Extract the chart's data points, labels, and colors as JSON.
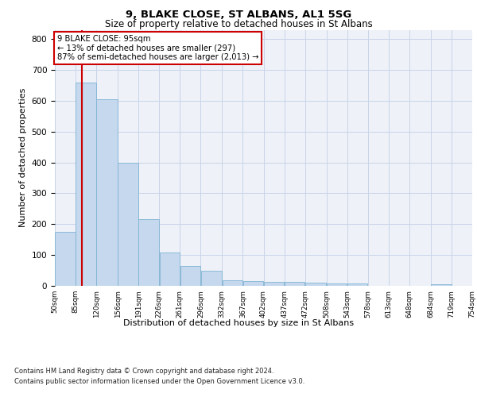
{
  "title1": "9, BLAKE CLOSE, ST ALBANS, AL1 5SG",
  "title2": "Size of property relative to detached houses in St Albans",
  "xlabel": "Distribution of detached houses by size in St Albans",
  "ylabel": "Number of detached properties",
  "footer1": "Contains HM Land Registry data © Crown copyright and database right 2024.",
  "footer2": "Contains public sector information licensed under the Open Government Licence v3.0.",
  "annotation_line1": "9 BLAKE CLOSE: 95sqm",
  "annotation_line2": "← 13% of detached houses are smaller (297)",
  "annotation_line3": "87% of semi-detached houses are larger (2,013) →",
  "property_size": 95,
  "bin_edges": [
    50,
    85,
    120,
    156,
    191,
    226,
    261,
    296,
    332,
    367,
    402,
    437,
    472,
    508,
    543,
    578,
    613,
    648,
    684,
    719,
    754
  ],
  "bar_heights": [
    175,
    660,
    605,
    400,
    215,
    108,
    65,
    48,
    18,
    15,
    14,
    13,
    10,
    8,
    8,
    0,
    0,
    0,
    6,
    0
  ],
  "tick_labels": [
    "50sqm",
    "85sqm",
    "120sqm",
    "156sqm",
    "191sqm",
    "226sqm",
    "261sqm",
    "296sqm",
    "332sqm",
    "367sqm",
    "402sqm",
    "437sqm",
    "472sqm",
    "508sqm",
    "543sqm",
    "578sqm",
    "613sqm",
    "648sqm",
    "684sqm",
    "719sqm",
    "754sqm"
  ],
  "bar_color": "#c5d8ed",
  "bar_edge_color": "#7fb3d3",
  "vline_color": "#cc0000",
  "vline_x": 95,
  "annotation_box_edge": "#cc0000",
  "grid_color": "#c8d4e8",
  "background_color": "#eef2f8",
  "ylim": [
    0,
    830
  ],
  "title1_fontsize": 9.5,
  "title2_fontsize": 8.5
}
